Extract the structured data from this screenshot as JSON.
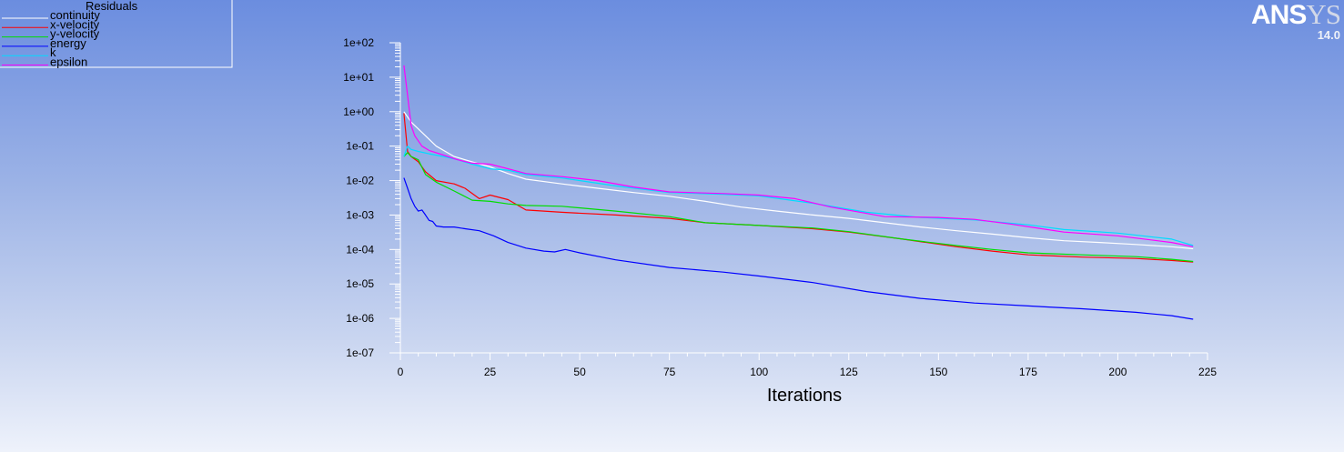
{
  "brand": {
    "logo_main": "ANS",
    "logo_tail": "YS",
    "version": "14.0"
  },
  "legend": {
    "title": "Residuals",
    "items": [
      {
        "label": "continuity",
        "color": "#ffffff"
      },
      {
        "label": "x-velocity",
        "color": "#ff0000"
      },
      {
        "label": "y-velocity",
        "color": "#00dd00"
      },
      {
        "label": "energy",
        "color": "#0000ff"
      },
      {
        "label": "k",
        "color": "#00dcff"
      },
      {
        "label": "epsilon",
        "color": "#ff00ff"
      }
    ]
  },
  "chart_data": {
    "type": "line",
    "title": "",
    "xlabel": "Iterations",
    "ylabel": "",
    "xlim": [
      0,
      225
    ],
    "xticks": [
      0,
      25,
      50,
      75,
      100,
      125,
      150,
      175,
      200,
      225
    ],
    "ylim_exp": [
      -7,
      2
    ],
    "yscale": "log",
    "yticks": [
      "1e-07",
      "1e-06",
      "1e-05",
      "1e-04",
      "1e-03",
      "1e-02",
      "1e-01",
      "1e+00",
      "1e+01",
      "1e+02"
    ],
    "grid": false,
    "legend_position": "top-left",
    "series": [
      {
        "name": "continuity",
        "color": "#ffffff",
        "x": [
          1,
          3,
          6,
          10,
          15,
          20,
          25,
          30,
          35,
          45,
          55,
          65,
          75,
          85,
          95,
          105,
          115,
          125,
          135,
          145,
          155,
          165,
          175,
          185,
          195,
          205,
          215,
          221
        ],
        "y": [
          1.0,
          0.5,
          0.25,
          0.1,
          0.05,
          0.035,
          0.025,
          0.016,
          0.011,
          0.008,
          0.006,
          0.0045,
          0.0035,
          0.0025,
          0.0017,
          0.0013,
          0.001,
          0.0008,
          0.0006,
          0.00045,
          0.00035,
          0.00028,
          0.00022,
          0.00018,
          0.00016,
          0.00014,
          0.00012,
          0.000105
        ]
      },
      {
        "name": "x-velocity",
        "color": "#ff0000",
        "x": [
          1,
          2,
          3,
          5,
          7,
          10,
          15,
          18,
          22,
          25,
          30,
          35,
          45,
          60,
          75,
          85,
          100,
          115,
          125,
          140,
          155,
          165,
          175,
          190,
          205,
          215,
          221
        ],
        "y": [
          0.9,
          0.07,
          0.05,
          0.035,
          0.018,
          0.01,
          0.008,
          0.006,
          0.003,
          0.0038,
          0.0028,
          0.0014,
          0.0012,
          0.001,
          0.0008,
          0.0006,
          0.0005,
          0.0004,
          0.00032,
          0.0002,
          0.00012,
          9e-05,
          7e-05,
          6e-05,
          5.5e-05,
          4.8e-05,
          4.3e-05
        ]
      },
      {
        "name": "y-velocity",
        "color": "#00dd00",
        "x": [
          1,
          2,
          3,
          5,
          7,
          10,
          15,
          20,
          25,
          30,
          35,
          45,
          60,
          75,
          85,
          100,
          115,
          125,
          140,
          155,
          165,
          175,
          190,
          205,
          215,
          221
        ],
        "y": [
          0.05,
          0.065,
          0.05,
          0.04,
          0.015,
          0.009,
          0.005,
          0.0027,
          0.0025,
          0.0021,
          0.0019,
          0.0018,
          0.0013,
          0.0009,
          0.0006,
          0.0005,
          0.00042,
          0.00033,
          0.0002,
          0.00013,
          0.0001,
          8e-05,
          7e-05,
          6.2e-05,
          5.2e-05,
          4.5e-05
        ]
      },
      {
        "name": "energy",
        "color": "#0000ff",
        "x": [
          1,
          2,
          3,
          4,
          5,
          6,
          7,
          8,
          9,
          10,
          12,
          15,
          18,
          22,
          26,
          30,
          35,
          40,
          43,
          46,
          50,
          60,
          75,
          90,
          100,
          115,
          130,
          145,
          160,
          175,
          190,
          205,
          215,
          221
        ],
        "y": [
          0.012,
          0.006,
          0.003,
          0.0018,
          0.0013,
          0.0014,
          0.001,
          0.0007,
          0.00065,
          0.00048,
          0.00045,
          0.00045,
          0.0004,
          0.00035,
          0.00025,
          0.00016,
          0.00011,
          9e-05,
          8.5e-05,
          0.0001,
          8e-05,
          5e-05,
          3e-05,
          2.2e-05,
          1.7e-05,
          1.1e-05,
          6e-06,
          3.8e-06,
          2.8e-06,
          2.3e-06,
          1.9e-06,
          1.5e-06,
          1.2e-06,
          9.5e-07
        ]
      },
      {
        "name": "k",
        "color": "#00dcff",
        "x": [
          1,
          2,
          3,
          5,
          8,
          12,
          16,
          20,
          25,
          30,
          35,
          45,
          60,
          75,
          90,
          100,
          115,
          130,
          145,
          160,
          175,
          185,
          200,
          215,
          221
        ],
        "y": [
          0.05,
          0.1,
          0.08,
          0.07,
          0.06,
          0.05,
          0.04,
          0.03,
          0.022,
          0.02,
          0.015,
          0.012,
          0.007,
          0.0045,
          0.004,
          0.0036,
          0.0022,
          0.0012,
          0.00085,
          0.00072,
          0.00052,
          0.00038,
          0.0003,
          0.0002,
          0.00013
        ]
      },
      {
        "name": "epsilon",
        "color": "#ff00ff",
        "x": [
          1,
          2,
          3,
          4,
          6,
          8,
          12,
          16,
          20,
          25,
          30,
          35,
          45,
          55,
          65,
          75,
          90,
          100,
          110,
          120,
          135,
          150,
          160,
          170,
          185,
          200,
          215,
          221
        ],
        "y": [
          22.0,
          3.0,
          0.4,
          0.2,
          0.1,
          0.075,
          0.055,
          0.04,
          0.032,
          0.03,
          0.022,
          0.016,
          0.013,
          0.01,
          0.0065,
          0.0047,
          0.0042,
          0.0038,
          0.003,
          0.0017,
          0.0009,
          0.00085,
          0.00075,
          0.00055,
          0.00032,
          0.00025,
          0.00016,
          0.00012
        ]
      }
    ]
  }
}
